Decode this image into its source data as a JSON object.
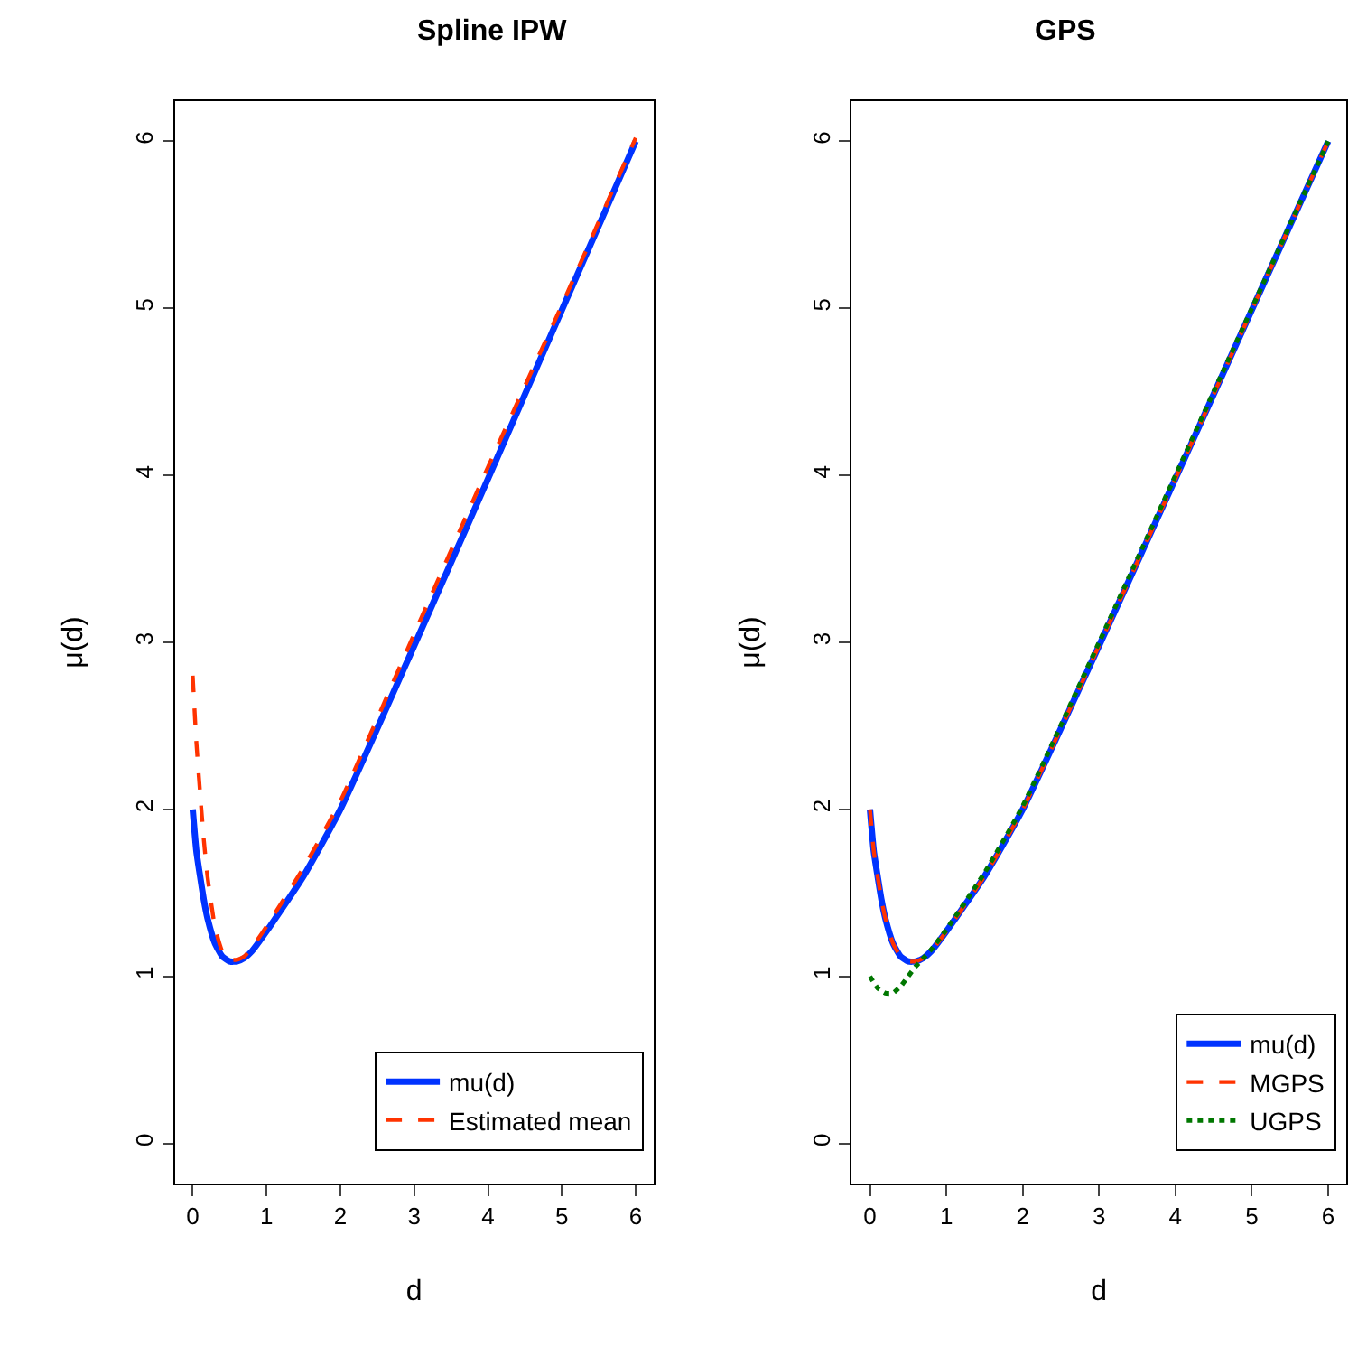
{
  "chart_data": [
    {
      "type": "line",
      "title": "Spline IPW",
      "xlabel": "d",
      "ylabel": "μ(d)",
      "xlim": [
        -0.24,
        6.24
      ],
      "ylim": [
        -0.24,
        6.24
      ],
      "xticks": [
        0,
        1,
        2,
        3,
        4,
        5,
        6
      ],
      "yticks": [
        0,
        1,
        2,
        3,
        4,
        5,
        6
      ],
      "legend": "bottom right",
      "series": [
        {
          "name": "mu(d)",
          "color": "#0033ff",
          "line_style": "solid",
          "x": [
            0,
            0.05,
            0.1,
            0.15,
            0.2,
            0.3,
            0.4,
            0.5,
            0.6,
            0.7,
            0.8,
            1,
            1.5,
            2,
            3,
            4,
            5,
            6
          ],
          "values": [
            2.0,
            1.75,
            1.6,
            1.46,
            1.35,
            1.2,
            1.12,
            1.09,
            1.09,
            1.11,
            1.15,
            1.27,
            1.6,
            2.0,
            2.98,
            3.98,
            4.99,
            6.0
          ]
        },
        {
          "name": "Estimated mean",
          "color": "#ff3300",
          "line_style": "dashed",
          "x": [
            0,
            0.05,
            0.1,
            0.15,
            0.2,
            0.3,
            0.4,
            0.5,
            0.6,
            0.7,
            0.8,
            1,
            1.5,
            2,
            3,
            4,
            5,
            6
          ],
          "values": [
            2.8,
            2.4,
            2.1,
            1.82,
            1.6,
            1.3,
            1.15,
            1.1,
            1.1,
            1.12,
            1.17,
            1.3,
            1.65,
            2.05,
            3.05,
            4.05,
            5.02,
            6.02
          ]
        }
      ]
    },
    {
      "type": "line",
      "title": "GPS",
      "xlabel": "d",
      "ylabel": "μ(d)",
      "xlim": [
        -0.24,
        6.24
      ],
      "ylim": [
        -0.24,
        6.24
      ],
      "xticks": [
        0,
        1,
        2,
        3,
        4,
        5,
        6
      ],
      "yticks": [
        0,
        1,
        2,
        3,
        4,
        5,
        6
      ],
      "legend": "bottom right",
      "series": [
        {
          "name": "mu(d)",
          "color": "#0033ff",
          "line_style": "solid",
          "x": [
            0,
            0.05,
            0.1,
            0.15,
            0.2,
            0.3,
            0.4,
            0.5,
            0.6,
            0.7,
            0.8,
            1,
            1.5,
            2,
            3,
            4,
            5,
            6
          ],
          "values": [
            2.0,
            1.75,
            1.6,
            1.46,
            1.35,
            1.2,
            1.12,
            1.09,
            1.09,
            1.11,
            1.15,
            1.27,
            1.6,
            2.0,
            2.98,
            3.98,
            4.99,
            6.0
          ]
        },
        {
          "name": "MGPS",
          "color": "#ff3300",
          "line_style": "dashed",
          "x": [
            0,
            0.05,
            0.1,
            0.15,
            0.2,
            0.3,
            0.4,
            0.5,
            0.6,
            0.7,
            0.8,
            1,
            1.5,
            2,
            3,
            4,
            5,
            6
          ],
          "values": [
            2.0,
            1.75,
            1.6,
            1.46,
            1.35,
            1.2,
            1.12,
            1.09,
            1.09,
            1.11,
            1.15,
            1.27,
            1.6,
            2.0,
            2.98,
            3.98,
            4.99,
            6.0
          ]
        },
        {
          "name": "UGPS",
          "color": "#007700",
          "line_style": "dotted",
          "x": [
            0,
            0.1,
            0.2,
            0.3,
            0.4,
            0.5,
            0.6,
            0.7,
            0.8,
            1,
            1.5,
            2,
            3,
            4,
            5,
            6
          ],
          "values": [
            1.0,
            0.93,
            0.9,
            0.9,
            0.94,
            1.0,
            1.06,
            1.11,
            1.16,
            1.28,
            1.62,
            2.02,
            3.0,
            4.0,
            5.0,
            6.0
          ]
        }
      ]
    }
  ]
}
